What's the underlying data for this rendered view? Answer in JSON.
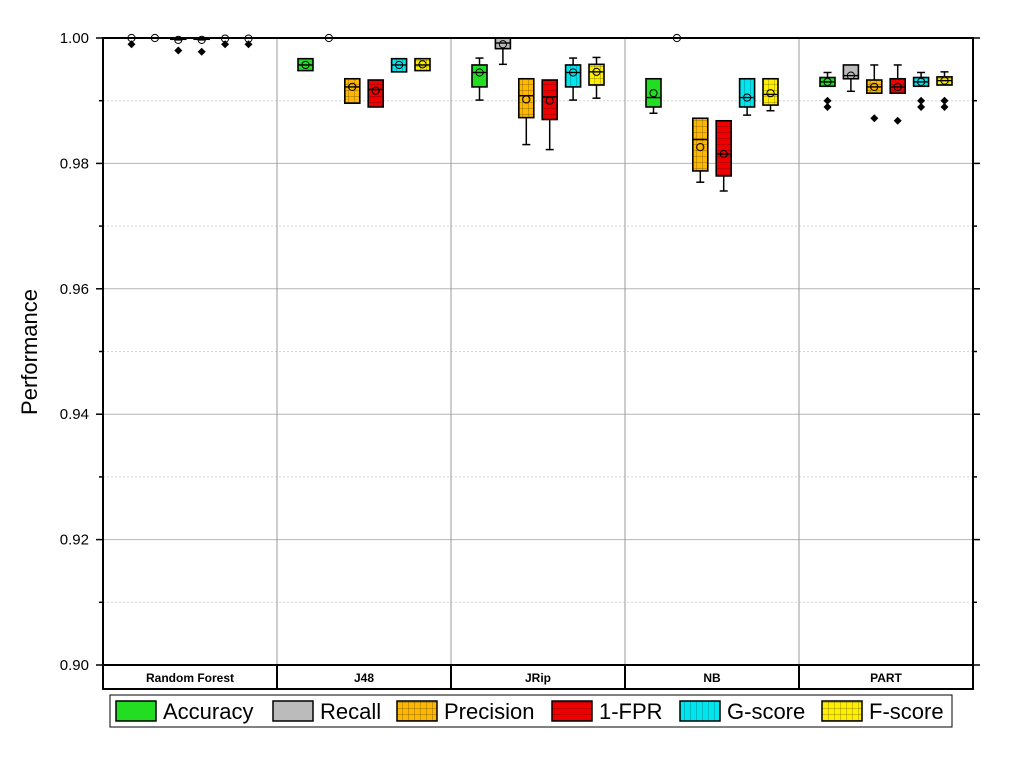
{
  "chart_data": {
    "type": "box",
    "ylabel": "Performance",
    "ylim": [
      0.9,
      1.0
    ],
    "yticks": [
      "0.90",
      "0.92",
      "0.94",
      "0.96",
      "0.98",
      "1.00"
    ],
    "grid": true,
    "legend_position": "bottom",
    "groups": [
      "Random Forest",
      "J48",
      "JRip",
      "NB",
      "PART"
    ],
    "series": [
      {
        "name": "Accuracy",
        "color": "#22dd22",
        "pattern": "none"
      },
      {
        "name": "Recall",
        "color": "#bbbbbb",
        "pattern": "none"
      },
      {
        "name": "Precision",
        "color": "#ffb700",
        "pattern": "grid"
      },
      {
        "name": "1-FPR",
        "color": "#ee0000",
        "pattern": "horizontal"
      },
      {
        "name": "G-score",
        "color": "#00e5ee",
        "pattern": "vertical"
      },
      {
        "name": "F-score",
        "color": "#ffee00",
        "pattern": "grid"
      }
    ],
    "boxes": {
      "Random Forest": [
        {
          "q1": 0.9999,
          "median": 1.0,
          "q3": 1.0,
          "low": 0.9999,
          "high": 1.0,
          "mean": 1.0,
          "outliers": [
            0.999
          ]
        },
        {
          "q1": 1.0,
          "median": 1.0,
          "q3": 1.0,
          "low": 1.0,
          "high": 1.0,
          "mean": 1.0,
          "outliers": []
        },
        {
          "q1": 0.9998,
          "median": 1.0,
          "q3": 1.0,
          "low": 0.9997,
          "high": 1.0,
          "mean": 0.9997,
          "outliers": [
            0.998
          ]
        },
        {
          "q1": 0.9998,
          "median": 1.0,
          "q3": 1.0,
          "low": 0.9997,
          "high": 1.0,
          "mean": 0.9997,
          "outliers": [
            0.9978
          ]
        },
        {
          "q1": 0.9999,
          "median": 1.0,
          "q3": 1.0,
          "low": 0.9999,
          "high": 1.0,
          "mean": 0.9999,
          "outliers": [
            0.999
          ]
        },
        {
          "q1": 0.9999,
          "median": 1.0,
          "q3": 1.0,
          "low": 0.9999,
          "high": 1.0,
          "mean": 0.9999,
          "outliers": [
            0.999
          ]
        }
      ],
      "J48": [
        {
          "q1": 0.9948,
          "median": 0.9957,
          "q3": 0.9967,
          "low": 0.9948,
          "high": 0.9967,
          "mean": 0.9957,
          "outliers": []
        },
        {
          "q1": 1.0,
          "median": 1.0,
          "q3": 1.0,
          "low": 1.0,
          "high": 1.0,
          "mean": 1.0,
          "outliers": []
        },
        {
          "q1": 0.9896,
          "median": 0.9922,
          "q3": 0.9935,
          "low": 0.9896,
          "high": 0.9935,
          "mean": 0.9922,
          "outliers": []
        },
        {
          "q1": 0.989,
          "median": 0.9918,
          "q3": 0.9933,
          "low": 0.989,
          "high": 0.9933,
          "mean": 0.9916,
          "outliers": []
        },
        {
          "q1": 0.9946,
          "median": 0.9957,
          "q3": 0.9967,
          "low": 0.9946,
          "high": 0.9967,
          "mean": 0.9957,
          "outliers": []
        },
        {
          "q1": 0.9948,
          "median": 0.9957,
          "q3": 0.9967,
          "low": 0.9948,
          "high": 0.9967,
          "mean": 0.9958,
          "outliers": []
        }
      ],
      "JRip": [
        {
          "q1": 0.9922,
          "median": 0.9945,
          "q3": 0.9957,
          "low": 0.9901,
          "high": 0.9968,
          "mean": 0.9945,
          "outliers": []
        },
        {
          "q1": 0.9983,
          "median": 0.9992,
          "q3": 1.0,
          "low": 0.9958,
          "high": 1.0,
          "mean": 0.999,
          "outliers": []
        },
        {
          "q1": 0.9873,
          "median": 0.9908,
          "q3": 0.9935,
          "low": 0.983,
          "high": 0.9935,
          "mean": 0.9902,
          "outliers": []
        },
        {
          "q1": 0.987,
          "median": 0.9906,
          "q3": 0.9933,
          "low": 0.9822,
          "high": 0.9933,
          "mean": 0.99,
          "outliers": []
        },
        {
          "q1": 0.9922,
          "median": 0.9945,
          "q3": 0.9957,
          "low": 0.9901,
          "high": 0.9968,
          "mean": 0.9945,
          "outliers": []
        },
        {
          "q1": 0.9925,
          "median": 0.9946,
          "q3": 0.9958,
          "low": 0.9904,
          "high": 0.9969,
          "mean": 0.9946,
          "outliers": []
        }
      ],
      "NB": [
        {
          "q1": 0.989,
          "median": 0.9905,
          "q3": 0.9935,
          "low": 0.988,
          "high": 0.9935,
          "mean": 0.9912,
          "outliers": []
        },
        {
          "q1": 1.0,
          "median": 1.0,
          "q3": 1.0,
          "low": 1.0,
          "high": 1.0,
          "mean": 1.0,
          "outliers": []
        },
        {
          "q1": 0.9788,
          "median": 0.9838,
          "q3": 0.9872,
          "low": 0.977,
          "high": 0.9872,
          "mean": 0.9826,
          "outliers": []
        },
        {
          "q1": 0.978,
          "median": 0.9815,
          "q3": 0.9868,
          "low": 0.9756,
          "high": 0.9868,
          "mean": 0.9815,
          "outliers": []
        },
        {
          "q1": 0.989,
          "median": 0.9905,
          "q3": 0.9935,
          "low": 0.9877,
          "high": 0.9935,
          "mean": 0.9905,
          "outliers": []
        },
        {
          "q1": 0.9893,
          "median": 0.991,
          "q3": 0.9935,
          "low": 0.9884,
          "high": 0.9935,
          "mean": 0.9912,
          "outliers": []
        }
      ],
      "PART": [
        {
          "q1": 0.9923,
          "median": 0.993,
          "q3": 0.9937,
          "low": 0.9923,
          "high": 0.9945,
          "mean": 0.993,
          "outliers": [
            0.99,
            0.989
          ]
        },
        {
          "q1": 0.9935,
          "median": 0.994,
          "q3": 0.9957,
          "low": 0.9915,
          "high": 0.9957,
          "mean": 0.994,
          "outliers": []
        },
        {
          "q1": 0.9912,
          "median": 0.9922,
          "q3": 0.9933,
          "low": 0.9912,
          "high": 0.9957,
          "mean": 0.9922,
          "outliers": [
            0.9872
          ]
        },
        {
          "q1": 0.9912,
          "median": 0.9922,
          "q3": 0.9935,
          "low": 0.9912,
          "high": 0.9957,
          "mean": 0.9922,
          "outliers": [
            0.9868
          ]
        },
        {
          "q1": 0.9923,
          "median": 0.993,
          "q3": 0.9937,
          "low": 0.9923,
          "high": 0.9945,
          "mean": 0.993,
          "outliers": [
            0.99,
            0.989
          ]
        },
        {
          "q1": 0.9925,
          "median": 0.9932,
          "q3": 0.9938,
          "low": 0.9925,
          "high": 0.9946,
          "mean": 0.9932,
          "outliers": [
            0.99,
            0.989
          ]
        }
      ]
    }
  }
}
